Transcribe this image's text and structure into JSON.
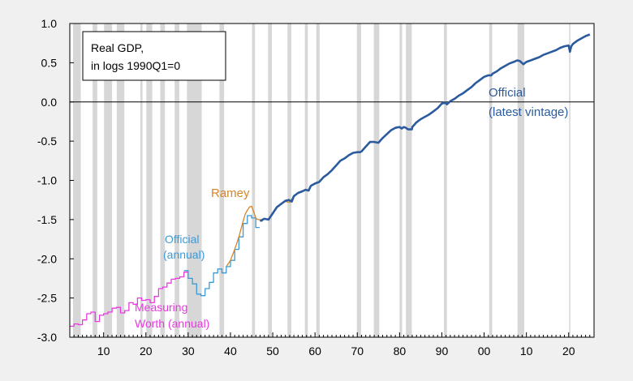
{
  "chart_data": {
    "type": "line",
    "legend_box": {
      "line1": "Real GDP,",
      "line2": "in logs 1990Q1=0"
    },
    "x_ticks": [
      {
        "year": 1910,
        "label": "10"
      },
      {
        "year": 1920,
        "label": "20"
      },
      {
        "year": 1930,
        "label": "30"
      },
      {
        "year": 1940,
        "label": "40"
      },
      {
        "year": 1950,
        "label": "50"
      },
      {
        "year": 1960,
        "label": "60"
      },
      {
        "year": 1970,
        "label": "70"
      },
      {
        "year": 1980,
        "label": "80"
      },
      {
        "year": 1990,
        "label": "90"
      },
      {
        "year": 2000,
        "label": "00"
      },
      {
        "year": 2010,
        "label": "10"
      },
      {
        "year": 2020,
        "label": "20"
      }
    ],
    "y_ticks": [
      "1.0",
      "0.5",
      "0.0",
      "-0.5",
      "-1.0",
      "-1.5",
      "-2.0",
      "-2.5",
      "-3.0"
    ],
    "xlim": [
      1902,
      2026
    ],
    "ylim": [
      -3.0,
      1.0
    ],
    "zero_line": 0.0,
    "recessions": [
      [
        1902.75,
        1904.6
      ],
      [
        1907.4,
        1908.5
      ],
      [
        1910.1,
        1912.0
      ],
      [
        1913.1,
        1914.9
      ],
      [
        1918.7,
        1919.2
      ],
      [
        1920.1,
        1921.5
      ],
      [
        1923.4,
        1924.5
      ],
      [
        1926.8,
        1927.9
      ],
      [
        1929.7,
        1933.2
      ],
      [
        1937.4,
        1938.5
      ],
      [
        1945.1,
        1945.8
      ],
      [
        1948.9,
        1949.8
      ],
      [
        1953.5,
        1954.4
      ],
      [
        1957.6,
        1958.3
      ],
      [
        1960.3,
        1961.1
      ],
      [
        1969.9,
        1970.9
      ],
      [
        1973.9,
        1975.2
      ],
      [
        1980.0,
        1980.6
      ],
      [
        1981.5,
        1982.9
      ],
      [
        1990.5,
        1991.2
      ],
      [
        2001.2,
        2001.9
      ],
      [
        2007.9,
        2009.5
      ],
      [
        2020.1,
        2020.4
      ]
    ],
    "annotations": [
      {
        "text": "Ramey",
        "color": "#d4862a"
      },
      {
        "text": "Official",
        "color": "#3a9ad9"
      },
      {
        "text": "(annual)",
        "color": "#3a9ad9"
      },
      {
        "text": "Measuring",
        "color": "#e83ae0"
      },
      {
        "text": "Worth (annual)",
        "color": "#e83ae0"
      },
      {
        "text": "Official",
        "color": "#2b5b9e"
      },
      {
        "text": "(latest vintage)",
        "color": "#2b5b9e"
      }
    ],
    "series": [
      {
        "name": "Measuring Worth (annual)",
        "color": "#e83ae0",
        "step": true,
        "x": [
          1902,
          1903,
          1904,
          1905,
          1906,
          1907,
          1908,
          1909,
          1910,
          1911,
          1912,
          1913,
          1914,
          1915,
          1916,
          1917,
          1918,
          1919,
          1920,
          1921,
          1922,
          1923,
          1924,
          1925,
          1926,
          1927,
          1928,
          1929
        ],
        "y": [
          -2.86,
          -2.83,
          -2.84,
          -2.78,
          -2.7,
          -2.68,
          -2.8,
          -2.72,
          -2.7,
          -2.68,
          -2.63,
          -2.62,
          -2.69,
          -2.66,
          -2.56,
          -2.58,
          -2.5,
          -2.53,
          -2.52,
          -2.56,
          -2.48,
          -2.38,
          -2.36,
          -2.31,
          -2.26,
          -2.25,
          -2.23,
          -2.17
        ]
      },
      {
        "name": "Official (annual)",
        "color": "#3a9ad9",
        "step": true,
        "x": [
          1929,
          1930,
          1931,
          1932,
          1933,
          1934,
          1935,
          1936,
          1937,
          1938,
          1939,
          1940,
          1941,
          1942,
          1943,
          1944,
          1945,
          1946
        ],
        "y": [
          -2.15,
          -2.25,
          -2.32,
          -2.45,
          -2.47,
          -2.38,
          -2.3,
          -2.18,
          -2.13,
          -2.18,
          -2.1,
          -2.02,
          -1.88,
          -1.72,
          -1.55,
          -1.45,
          -1.48,
          -1.6
        ]
      },
      {
        "name": "Ramey",
        "color": "#d4862a",
        "step": false,
        "x": [
          1939.0,
          1940.0,
          1941.0,
          1942.0,
          1943.0,
          1943.5,
          1944.0,
          1944.5,
          1945.0,
          1945.5,
          1946.0,
          1946.5,
          1947.0,
          1947.5,
          1948.0,
          1949.0,
          1950.0,
          1951.0,
          1952.0,
          1953.0,
          1954.0,
          1955.0,
          1956.0,
          1957.0
        ],
        "y": [
          -2.1,
          -2.02,
          -1.88,
          -1.72,
          -1.52,
          -1.43,
          -1.38,
          -1.34,
          -1.33,
          -1.4,
          -1.48,
          -1.5,
          -1.5,
          -1.52,
          -1.49,
          -1.5,
          -1.42,
          -1.34,
          -1.3,
          -1.27,
          -1.28,
          -1.2,
          -1.16,
          -1.14
        ]
      },
      {
        "name": "Official (latest vintage)",
        "color": "#2b5b9e",
        "step": false,
        "x": [
          1947.0,
          1948.0,
          1949.0,
          1950.0,
          1951.0,
          1952.0,
          1953.0,
          1953.8,
          1954.5,
          1955.0,
          1956.0,
          1957.0,
          1957.8,
          1958.5,
          1959.0,
          1960.0,
          1961.0,
          1962.0,
          1963.0,
          1964.0,
          1965.0,
          1966.0,
          1967.0,
          1968.0,
          1969.0,
          1970.0,
          1970.7,
          1971.0,
          1972.0,
          1973.0,
          1974.0,
          1975.0,
          1976.0,
          1977.0,
          1978.0,
          1979.0,
          1980.0,
          1980.5,
          1981.0,
          1981.5,
          1982.0,
          1982.9,
          1983.0,
          1984.0,
          1985.0,
          1986.0,
          1987.0,
          1988.0,
          1989.0,
          1990.0,
          1990.8,
          1991.2,
          1992.0,
          1993.0,
          1994.0,
          1995.0,
          1996.0,
          1997.0,
          1998.0,
          1999.0,
          2000.0,
          2001.0,
          2001.7,
          2002.0,
          2003.0,
          2004.0,
          2005.0,
          2006.0,
          2007.0,
          2007.8,
          2008.5,
          2009.3,
          2010.0,
          2011.0,
          2012.0,
          2013.0,
          2014.0,
          2015.0,
          2016.0,
          2017.0,
          2018.0,
          2019.0,
          2020.0,
          2020.3,
          2020.6,
          2021.0,
          2022.0,
          2023.0,
          2024.0,
          2025.0
        ],
        "y": [
          -1.52,
          -1.49,
          -1.5,
          -1.42,
          -1.34,
          -1.3,
          -1.26,
          -1.25,
          -1.27,
          -1.2,
          -1.16,
          -1.14,
          -1.12,
          -1.13,
          -1.07,
          -1.04,
          -1.02,
          -0.96,
          -0.92,
          -0.87,
          -0.81,
          -0.75,
          -0.72,
          -0.68,
          -0.65,
          -0.64,
          -0.64,
          -0.63,
          -0.57,
          -0.51,
          -0.51,
          -0.52,
          -0.46,
          -0.41,
          -0.36,
          -0.33,
          -0.32,
          -0.34,
          -0.32,
          -0.33,
          -0.35,
          -0.35,
          -0.32,
          -0.26,
          -0.22,
          -0.19,
          -0.16,
          -0.12,
          -0.08,
          -0.02,
          -0.01,
          -0.03,
          0.01,
          0.04,
          0.08,
          0.11,
          0.15,
          0.19,
          0.24,
          0.28,
          0.32,
          0.34,
          0.34,
          0.36,
          0.39,
          0.43,
          0.46,
          0.49,
          0.51,
          0.53,
          0.52,
          0.48,
          0.51,
          0.53,
          0.55,
          0.57,
          0.6,
          0.62,
          0.64,
          0.66,
          0.69,
          0.71,
          0.72,
          0.64,
          0.71,
          0.74,
          0.78,
          0.81,
          0.84,
          0.86
        ]
      }
    ]
  }
}
